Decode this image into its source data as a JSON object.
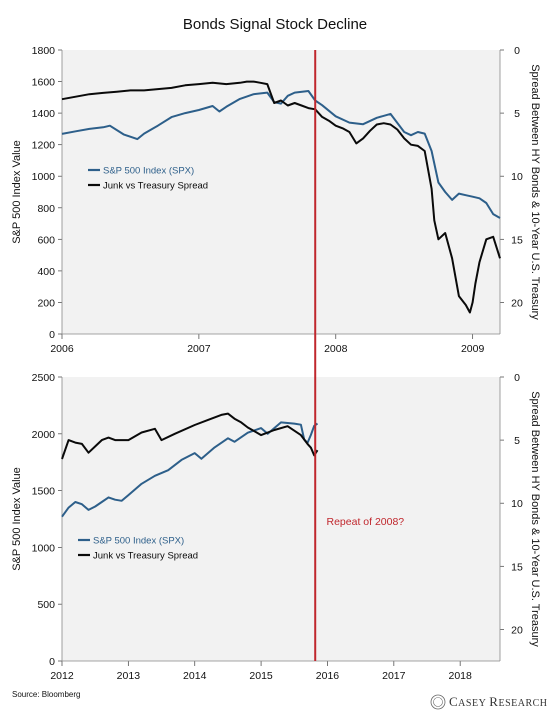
{
  "title": "Bonds Signal Stock Decline",
  "source": "Source: Bloomberg",
  "brand": {
    "name": "CASEY RESEARCH",
    "first_letter": "C",
    "rest1": "ASEY",
    "second_letter": "R",
    "rest2": "ESEARCH"
  },
  "colors": {
    "spx": "#2d5f8a",
    "spread": "#0a0a0a",
    "event_line": "#c0272d",
    "annotation": "#c0272d",
    "plot_bg": "#f2f2f2"
  },
  "chart_data": [
    {
      "type": "line",
      "ylabel": "S&P 500 Index Value",
      "y2label": "Spread Between HY Bonds & 10-Year U.S. Treasury",
      "ylim": [
        0,
        1800
      ],
      "y2lim": [
        0,
        22.5
      ],
      "y2_inverted": true,
      "yticks": [
        "0",
        "200",
        "400",
        "600",
        "800",
        "1000",
        "1200",
        "1400",
        "1600",
        "1800"
      ],
      "y2ticks": [
        "0",
        "5",
        "10",
        "15",
        "20"
      ],
      "xlim": [
        2006.0,
        2009.2
      ],
      "xticks": [
        {
          "x": 2006.0,
          "label": "2006"
        },
        {
          "x": 2007.0,
          "label": "2007"
        },
        {
          "x": 2008.0,
          "label": "2008"
        },
        {
          "x": 2009.0,
          "label": "2009"
        }
      ],
      "legend": {
        "placement": "middle-left",
        "entries": [
          "S&P 500 Index (SPX)",
          "Junk vs Treasury Spread"
        ]
      },
      "event_x": 2007.85,
      "series": [
        {
          "name": "S&P 500 Index (SPX)",
          "axis": "left",
          "x": [
            2006.0,
            2006.1,
            2006.2,
            2006.3,
            2006.35,
            2006.45,
            2006.55,
            2006.6,
            2006.7,
            2006.8,
            2006.9,
            2007.0,
            2007.1,
            2007.15,
            2007.2,
            2007.3,
            2007.4,
            2007.5,
            2007.55,
            2007.6,
            2007.65,
            2007.7,
            2007.8,
            2007.85,
            2007.9,
            2008.0,
            2008.1,
            2008.2,
            2008.3,
            2008.4,
            2008.5,
            2008.55,
            2008.6,
            2008.65,
            2008.7,
            2008.75,
            2008.8,
            2008.85,
            2008.9,
            2008.95,
            2009.0,
            2009.05,
            2009.1,
            2009.15,
            2009.2
          ],
          "y": [
            1268,
            1285,
            1300,
            1310,
            1320,
            1265,
            1235,
            1270,
            1320,
            1375,
            1400,
            1420,
            1445,
            1410,
            1440,
            1490,
            1520,
            1530,
            1470,
            1460,
            1510,
            1530,
            1540,
            1480,
            1450,
            1380,
            1340,
            1330,
            1370,
            1395,
            1280,
            1260,
            1280,
            1270,
            1160,
            960,
            900,
            850,
            890,
            880,
            870,
            860,
            830,
            760,
            735
          ]
        },
        {
          "name": "Junk vs Treasury Spread",
          "axis": "right",
          "x": [
            2006.0,
            2006.1,
            2006.2,
            2006.3,
            2006.4,
            2006.5,
            2006.6,
            2006.7,
            2006.8,
            2006.9,
            2007.0,
            2007.1,
            2007.2,
            2007.3,
            2007.35,
            2007.4,
            2007.45,
            2007.5,
            2007.55,
            2007.6,
            2007.65,
            2007.7,
            2007.75,
            2007.8,
            2007.85,
            2007.9,
            2007.95,
            2008.0,
            2008.05,
            2008.1,
            2008.15,
            2008.2,
            2008.25,
            2008.3,
            2008.35,
            2008.4,
            2008.45,
            2008.5,
            2008.55,
            2008.6,
            2008.65,
            2008.7,
            2008.72,
            2008.75,
            2008.8,
            2008.85,
            2008.9,
            2008.95,
            2008.98,
            2009.0,
            2009.02,
            2009.05,
            2009.1,
            2009.15,
            2009.2
          ],
          "y": [
            3.9,
            3.7,
            3.5,
            3.4,
            3.3,
            3.2,
            3.2,
            3.1,
            3.0,
            2.8,
            2.7,
            2.6,
            2.7,
            2.6,
            2.5,
            2.5,
            2.6,
            2.7,
            4.2,
            4.0,
            4.4,
            4.2,
            4.4,
            4.6,
            4.7,
            5.3,
            5.6,
            6.0,
            6.2,
            6.5,
            7.4,
            7.0,
            6.4,
            5.9,
            5.8,
            5.9,
            6.3,
            7.0,
            7.5,
            7.6,
            8.0,
            11.0,
            13.5,
            15.0,
            14.5,
            16.5,
            19.5,
            20.2,
            20.8,
            20.0,
            18.5,
            16.8,
            15.0,
            14.8,
            16.5
          ]
        }
      ]
    },
    {
      "type": "line",
      "ylabel": "S&P 500 Index Value",
      "y2label": "Spread Between HY Bonds & 10-Year U.S. Treasury",
      "ylim": [
        0,
        2500
      ],
      "y2lim": [
        0,
        22.5
      ],
      "y2_inverted": true,
      "yticks": [
        "0",
        "500",
        "1000",
        "1500",
        "2000",
        "2500"
      ],
      "y2ticks": [
        "0",
        "5",
        "10",
        "15",
        "20"
      ],
      "xlim": [
        2012.0,
        2018.6
      ],
      "xticks": [
        {
          "x": 2012.0,
          "label": "2012"
        },
        {
          "x": 2013.0,
          "label": "2013"
        },
        {
          "x": 2014.0,
          "label": "2014"
        },
        {
          "x": 2015.0,
          "label": "2015"
        },
        {
          "x": 2016.0,
          "label": "2016"
        },
        {
          "x": 2017.0,
          "label": "2017"
        },
        {
          "x": 2018.0,
          "label": "2018"
        }
      ],
      "legend": {
        "placement": "middle-left",
        "entries": [
          "S&P 500 Index (SPX)",
          "Junk vs Treasury Spread"
        ]
      },
      "event_x": 2015.85,
      "annotation": "Repeat of 2008?",
      "series": [
        {
          "name": "S&P 500 Index (SPX)",
          "axis": "left",
          "x": [
            2012.0,
            2012.1,
            2012.2,
            2012.3,
            2012.4,
            2012.5,
            2012.6,
            2012.7,
            2012.8,
            2012.9,
            2013.0,
            2013.2,
            2013.4,
            2013.6,
            2013.8,
            2014.0,
            2014.1,
            2014.3,
            2014.5,
            2014.6,
            2014.8,
            2015.0,
            2015.1,
            2015.3,
            2015.5,
            2015.6,
            2015.65,
            2015.7,
            2015.75,
            2015.8,
            2015.85
          ],
          "y": [
            1270,
            1350,
            1400,
            1380,
            1330,
            1360,
            1400,
            1440,
            1420,
            1410,
            1460,
            1560,
            1630,
            1680,
            1770,
            1830,
            1780,
            1880,
            1960,
            1930,
            2010,
            2050,
            2000,
            2100,
            2090,
            2080,
            1950,
            1920,
            1990,
            2070,
            2090
          ]
        },
        {
          "name": "Junk vs Treasury Spread",
          "axis": "right",
          "x": [
            2012.0,
            2012.1,
            2012.2,
            2012.3,
            2012.4,
            2012.5,
            2012.6,
            2012.7,
            2012.8,
            2013.0,
            2013.2,
            2013.4,
            2013.5,
            2013.7,
            2014.0,
            2014.2,
            2014.4,
            2014.5,
            2014.6,
            2014.7,
            2014.8,
            2014.9,
            2015.0,
            2015.2,
            2015.4,
            2015.6,
            2015.7,
            2015.75,
            2015.8,
            2015.85
          ],
          "y": [
            6.5,
            5.0,
            5.2,
            5.3,
            6.0,
            5.5,
            5.0,
            4.8,
            5.0,
            5.0,
            4.4,
            4.1,
            5.0,
            4.5,
            3.8,
            3.4,
            3.0,
            2.9,
            3.3,
            3.6,
            4.0,
            4.3,
            4.6,
            4.2,
            3.9,
            4.6,
            5.3,
            5.6,
            6.2,
            5.8
          ]
        }
      ]
    }
  ]
}
